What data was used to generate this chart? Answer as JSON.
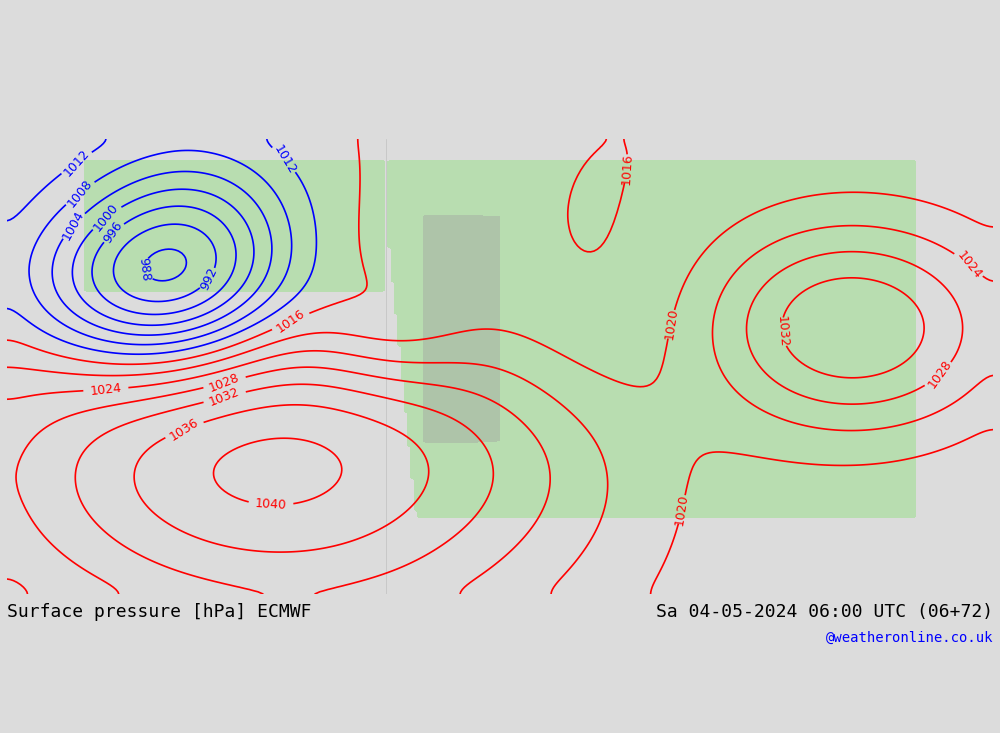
{
  "title_left": "Surface pressure [hPa] ECMWF",
  "title_right": "Sa 04-05-2024 06:00 UTC (06+72)",
  "watermark": "@weatheronline.co.uk",
  "bg_color": "#e8e8e8",
  "land_color": "#b8ddb0",
  "ocean_color": "#dcdcdc",
  "contour_interval": 4,
  "p_min": 984,
  "p_max": 1044,
  "label_fontsize": 9,
  "title_fontsize": 13
}
